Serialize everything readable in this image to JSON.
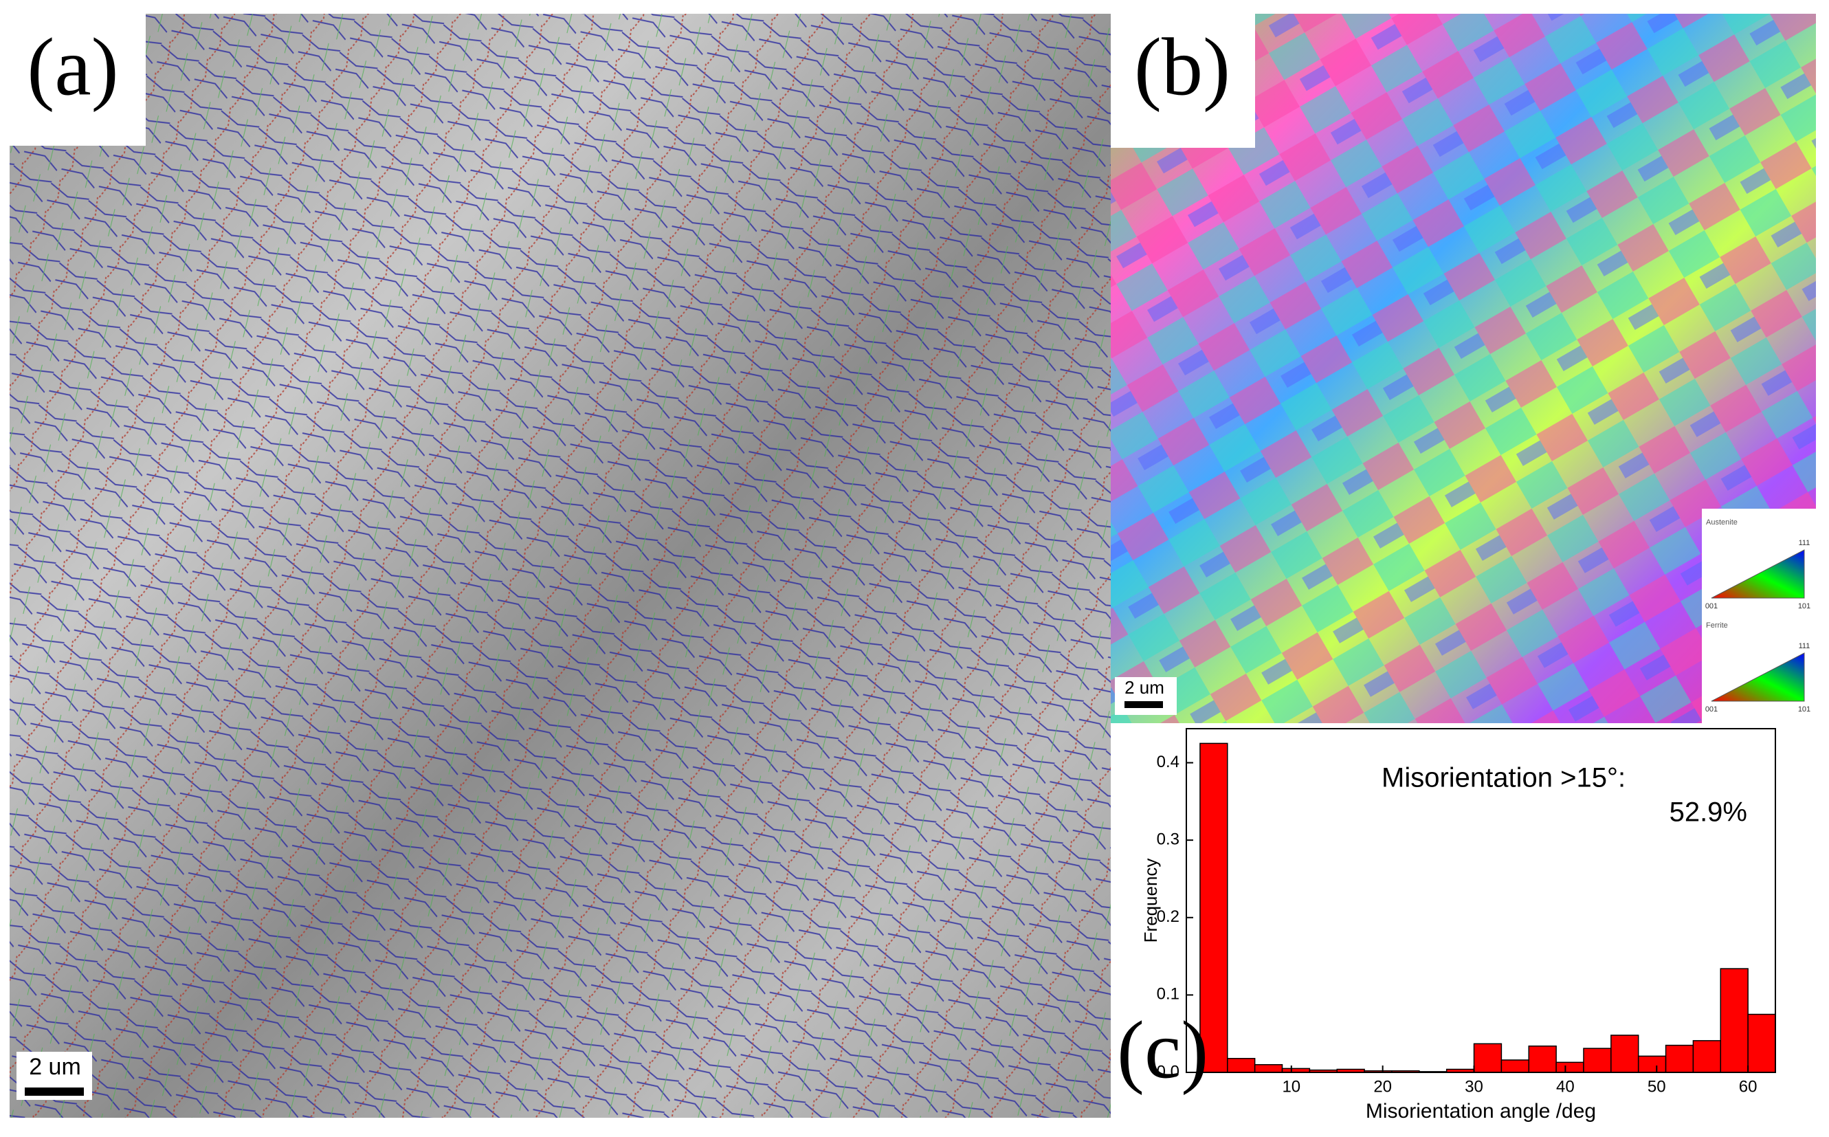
{
  "panels": {
    "a": {
      "label": "(a)",
      "scale_bar": "2 um"
    },
    "b": {
      "label": "(b)",
      "scale_bar": "2 um",
      "legend": [
        {
          "title": "Austenite",
          "corners": [
            "111",
            "001",
            "101"
          ]
        },
        {
          "title": "Ferrite",
          "corners": [
            "111",
            "001",
            "101"
          ]
        }
      ]
    },
    "c": {
      "label": "(c)"
    }
  },
  "chart_data": {
    "type": "histogram",
    "x_label": "Misorientation angle /deg",
    "y_label": "Frequency",
    "annotation": [
      "Misorientation >15°:",
      "52.9%"
    ],
    "bins": [
      0,
      3,
      6,
      9,
      12,
      15,
      18,
      21,
      24,
      27,
      30,
      33,
      36,
      39,
      42,
      45,
      48,
      51,
      54,
      57,
      60,
      63
    ],
    "values": [
      0.425,
      0.018,
      0.01,
      0.005,
      0.003,
      0.004,
      0.002,
      0.002,
      0.001,
      0.004,
      0.037,
      0.016,
      0.034,
      0.013,
      0.031,
      0.048,
      0.021,
      0.035,
      0.041,
      0.134,
      0.075
    ],
    "color": "#ff0000",
    "xlim": [
      -1.5,
      63
    ],
    "xticks": [
      10,
      20,
      30,
      40,
      50,
      60
    ],
    "ylim": [
      0,
      0.444
    ],
    "yticks": [
      {
        "value": 0,
        "label": "0.0"
      },
      0.1,
      0.2,
      0.3,
      0.4
    ]
  }
}
